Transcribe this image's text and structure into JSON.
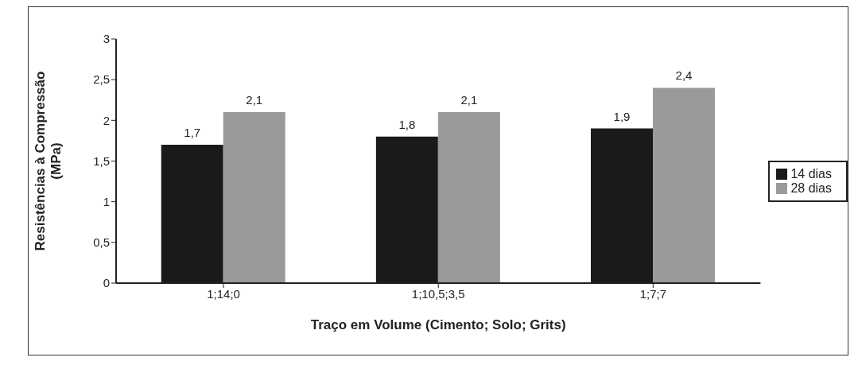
{
  "chart_data": {
    "type": "bar",
    "xlabel": "Traço em Volume (Cimento; Solo; Grits)",
    "ylabel": "Resistências à Compressão (MPa)",
    "categories": [
      "1;14;0",
      "1;10,5;3,5",
      "1;7;7"
    ],
    "series": [
      {
        "name": "14 dias",
        "color": "#1a1a1a",
        "values": [
          1.7,
          1.8,
          1.9
        ],
        "value_labels": [
          "1,7",
          "1,8",
          "1,9"
        ]
      },
      {
        "name": "28 dias",
        "color": "#9a9a9a",
        "values": [
          2.1,
          2.1,
          2.4
        ],
        "value_labels": [
          "2,1",
          "2,1",
          "2,4"
        ]
      }
    ],
    "ylim": [
      0,
      3
    ],
    "yticks": [
      0,
      {
        "value": 0.5,
        "label": "0,5"
      },
      1,
      {
        "value": 1.5,
        "label": "1,5"
      },
      2,
      {
        "value": 2.5,
        "label": "2,5"
      },
      3
    ],
    "grid": false,
    "legend": "right"
  }
}
